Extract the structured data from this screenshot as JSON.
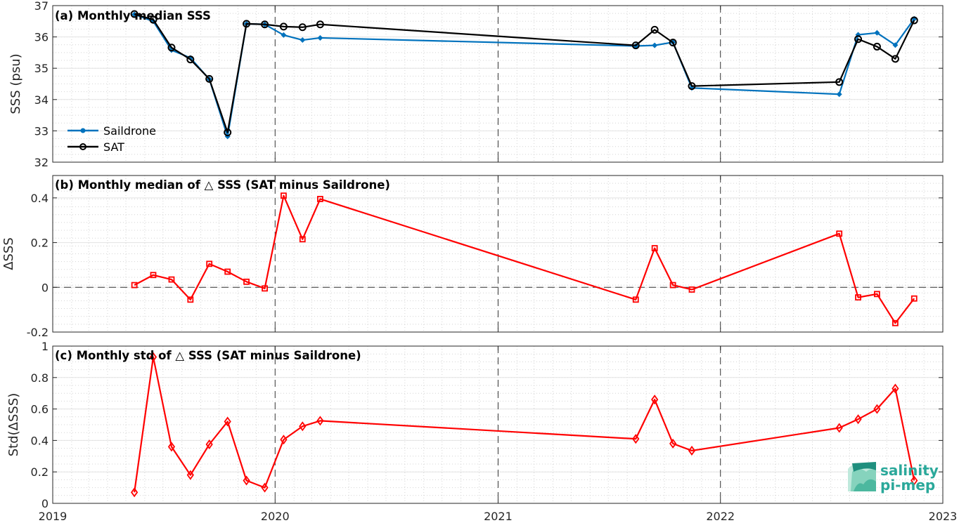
{
  "colors": {
    "saildrone": "#0072BD",
    "sat": "#000000",
    "delta": "#FF0000",
    "logo": "#2aa89a"
  },
  "logo": {
    "line1": "salinity",
    "line2": "pi-mep"
  },
  "chart_data": [
    {
      "type": "line",
      "title": "(a) Monthly median SSS",
      "xlabel": "",
      "ylabel": "SSS (psu)",
      "xlim": [
        "2019-01-01",
        "2023-01-01"
      ],
      "ylim": [
        32,
        37
      ],
      "yticks": [
        32,
        33,
        34,
        35,
        36,
        37
      ],
      "ytick_labels": [
        "32",
        "33",
        "34",
        "35",
        "36",
        "37"
      ],
      "grid": true,
      "legend_position": "bottom-left",
      "series": [
        {
          "name": "Saildrone",
          "marker": "dot",
          "color": "#0072BD",
          "x": [
            "2019-05-15",
            "2019-06-15",
            "2019-07-15",
            "2019-08-15",
            "2019-09-15",
            "2019-10-15",
            "2019-11-15",
            "2019-12-15",
            "2020-01-15",
            "2020-02-15",
            "2020-03-15",
            "2021-08-15",
            "2021-09-15",
            "2021-10-15",
            "2021-11-15",
            "2022-07-15",
            "2022-08-15",
            "2022-09-15",
            "2022-10-15",
            "2022-11-15"
          ],
          "y": [
            36.72,
            36.5,
            35.58,
            35.33,
            34.65,
            32.82,
            36.42,
            36.4,
            36.06,
            35.9,
            35.97,
            35.71,
            35.73,
            35.83,
            34.37,
            34.17,
            36.07,
            36.13,
            35.74,
            36.58
          ]
        },
        {
          "name": "SAT",
          "marker": "circle",
          "color": "#000000",
          "x": [
            "2019-05-15",
            "2019-06-15",
            "2019-07-15",
            "2019-08-15",
            "2019-09-15",
            "2019-10-15",
            "2019-11-15",
            "2019-12-15",
            "2020-01-15",
            "2020-02-15",
            "2020-03-15",
            "2021-08-15",
            "2021-09-15",
            "2021-10-15",
            "2021-11-15",
            "2022-07-15",
            "2022-08-15",
            "2022-09-15",
            "2022-10-15",
            "2022-11-15"
          ],
          "y": [
            36.73,
            36.55,
            35.66,
            35.28,
            34.66,
            32.95,
            36.42,
            36.4,
            36.33,
            36.31,
            36.4,
            35.73,
            36.23,
            35.82,
            34.43,
            34.56,
            35.93,
            35.69,
            35.3,
            36.53
          ]
        }
      ]
    },
    {
      "type": "line",
      "title": "(b) Monthly median of △ SSS (SAT minus Saildrone)",
      "xlabel": "",
      "ylabel": "ΔSSS",
      "xlim": [
        "2019-01-01",
        "2023-01-01"
      ],
      "ylim": [
        -0.2,
        0.5
      ],
      "yticks": [
        -0.2,
        0,
        0.2,
        0.4
      ],
      "ytick_labels": [
        "-0.2",
        "0",
        "0.2",
        "0.4"
      ],
      "grid": true,
      "zero_line": true,
      "series": [
        {
          "marker": "square",
          "color": "#FF0000",
          "x": [
            "2019-05-15",
            "2019-06-15",
            "2019-07-15",
            "2019-08-15",
            "2019-09-15",
            "2019-10-15",
            "2019-11-15",
            "2019-12-15",
            "2020-01-15",
            "2020-02-15",
            "2020-03-15",
            "2021-08-15",
            "2021-09-15",
            "2021-10-15",
            "2021-11-15",
            "2022-07-15",
            "2022-08-15",
            "2022-09-15",
            "2022-10-15",
            "2022-11-15"
          ],
          "y": [
            0.01,
            0.055,
            0.035,
            -0.055,
            0.105,
            0.07,
            0.025,
            -0.005,
            0.41,
            0.215,
            0.395,
            -0.055,
            0.175,
            0.01,
            -0.01,
            0.24,
            -0.045,
            -0.03,
            -0.16,
            -0.05
          ]
        }
      ]
    },
    {
      "type": "line",
      "title": "(c) Monthly std of △ SSS (SAT minus Saildrone)",
      "xlabel": "",
      "ylabel": "Std(ΔSSS)",
      "xlim": [
        "2019-01-01",
        "2023-01-01"
      ],
      "xticks": [
        "2019-01-01",
        "2020-01-01",
        "2021-01-01",
        "2022-01-01",
        "2023-01-01"
      ],
      "xtick_labels": [
        "2019",
        "2020",
        "2021",
        "2022",
        "2023"
      ],
      "ylim": [
        0,
        1
      ],
      "yticks": [
        0,
        0.2,
        0.4,
        0.6,
        0.8,
        1
      ],
      "ytick_labels": [
        "0",
        "0.2",
        "0.4",
        "0.6",
        "0.8",
        "1"
      ],
      "grid": true,
      "series": [
        {
          "marker": "diamond",
          "color": "#FF0000",
          "x": [
            "2019-05-15",
            "2019-06-15",
            "2019-07-15",
            "2019-08-15",
            "2019-09-15",
            "2019-10-15",
            "2019-11-15",
            "2019-12-15",
            "2020-01-15",
            "2020-02-15",
            "2020-03-15",
            "2021-08-15",
            "2021-09-15",
            "2021-10-15",
            "2021-11-15",
            "2022-07-15",
            "2022-08-15",
            "2022-09-15",
            "2022-10-15",
            "2022-11-15"
          ],
          "y": [
            0.07,
            0.93,
            0.36,
            0.18,
            0.375,
            0.52,
            0.145,
            0.1,
            0.405,
            0.49,
            0.525,
            0.41,
            0.66,
            0.38,
            0.335,
            0.48,
            0.535,
            0.6,
            0.73,
            0.145
          ]
        }
      ]
    }
  ]
}
